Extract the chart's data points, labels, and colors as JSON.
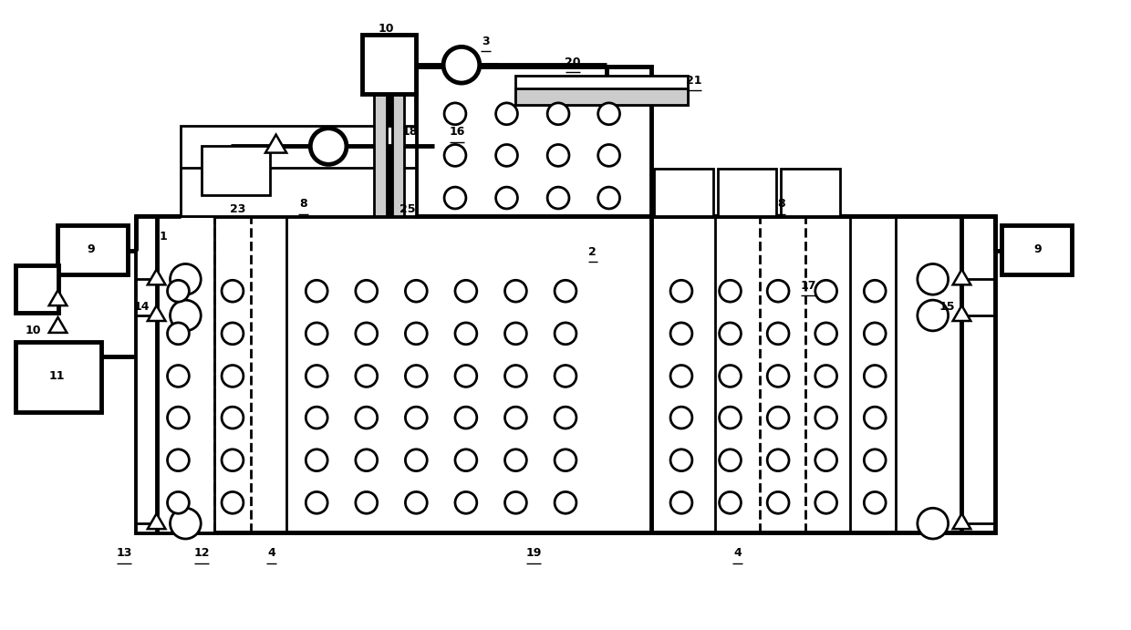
{
  "bg_color": "#ffffff",
  "lw": 2.0,
  "tlw": 3.5,
  "fig_w": 12.4,
  "fig_h": 6.91,
  "xmax": 12.4,
  "ymax": 6.91
}
